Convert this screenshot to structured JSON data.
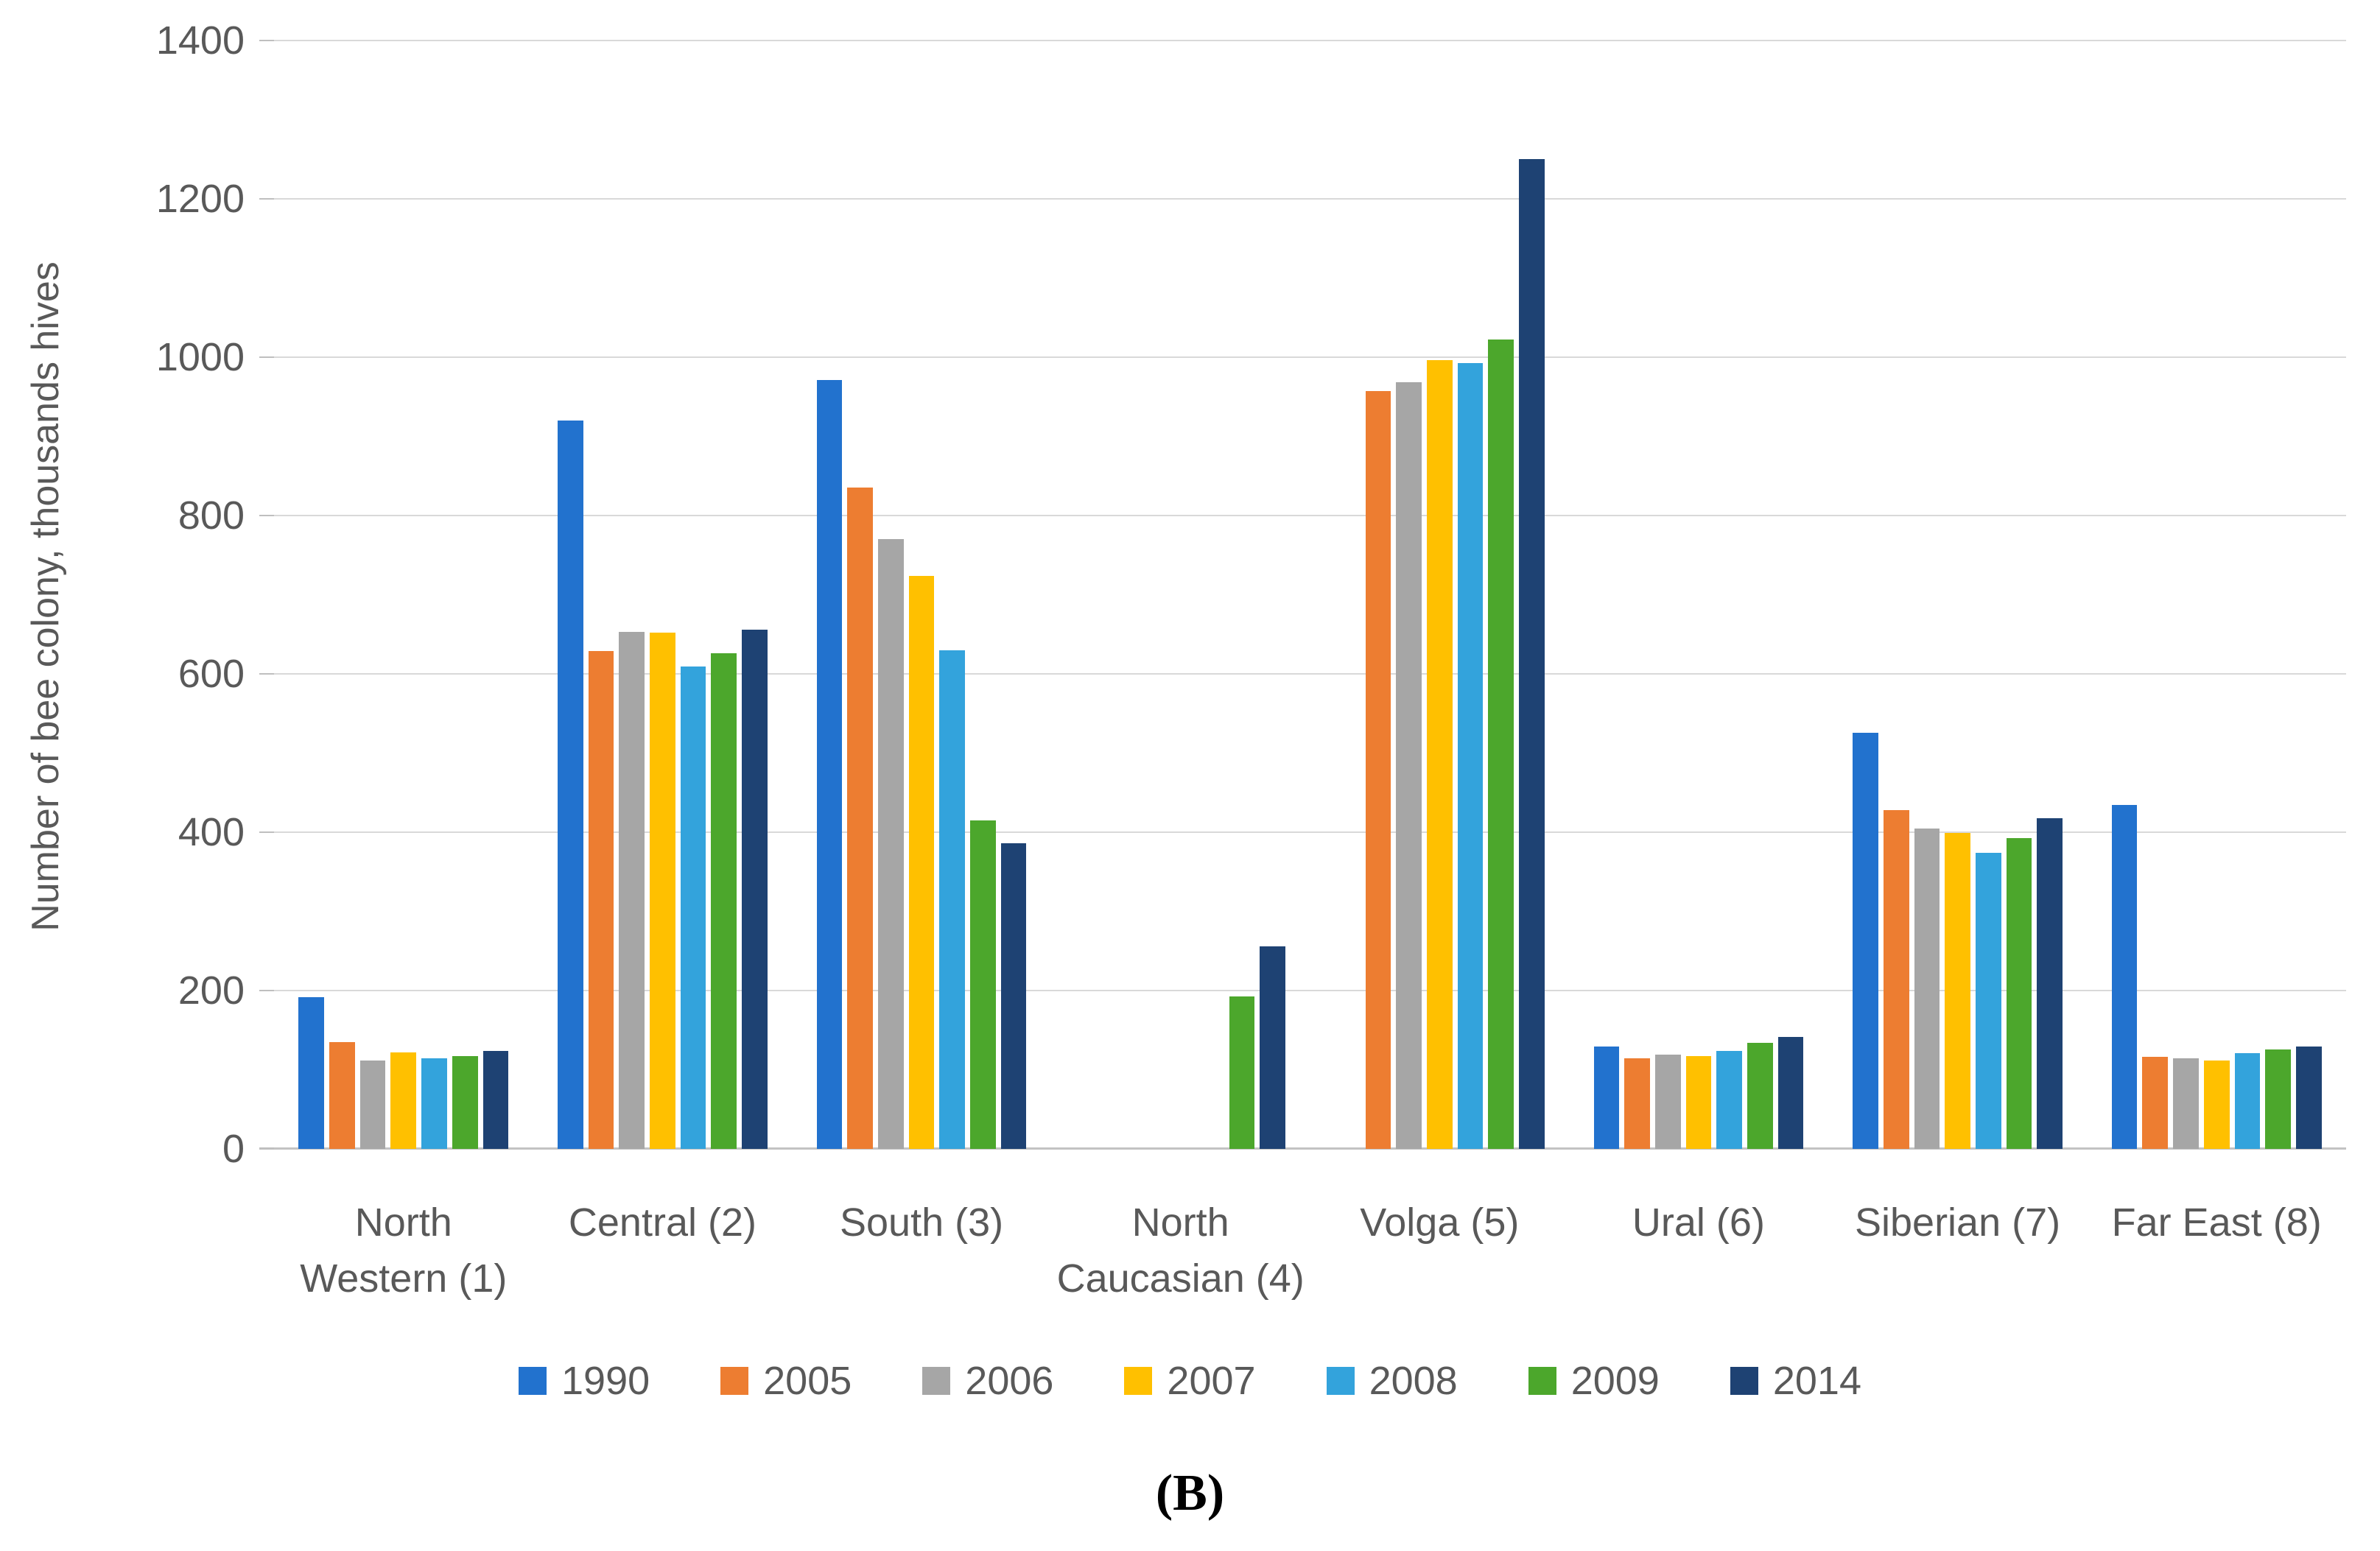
{
  "figure": {
    "caption": "(B)"
  },
  "chart_data": {
    "type": "bar",
    "title": "",
    "ylabel": "Number of bee colony, thousands hives",
    "xlabel": "",
    "ylim": [
      0,
      1400
    ],
    "y_ticks": [
      0,
      200,
      400,
      600,
      800,
      1000,
      1200,
      1400
    ],
    "grid": "horizontal",
    "legend_position": "bottom",
    "categories": [
      "North Western (1)",
      "Central (2)",
      "South (3)",
      "North Caucasian (4)",
      "Volga (5)",
      "Ural (6)",
      "Siberian (7)",
      "Far East (8)"
    ],
    "category_label_lines": [
      [
        "North",
        "Western (1)"
      ],
      [
        "Central (2)"
      ],
      [
        "South (3)"
      ],
      [
        "North",
        "Caucasian (4)"
      ],
      [
        "Volga (5)"
      ],
      [
        "Ural (6)"
      ],
      [
        "Siberian (7)"
      ],
      [
        "Far East (8)"
      ]
    ],
    "series": [
      {
        "name": "1990",
        "color": "#2272ce",
        "values": [
          192,
          920,
          971,
          0,
          0,
          129,
          526,
          434
        ]
      },
      {
        "name": "2005",
        "color": "#ed7d31",
        "values": [
          135,
          629,
          835,
          0,
          957,
          114,
          428,
          116
        ]
      },
      {
        "name": "2006",
        "color": "#a6a6a6",
        "values": [
          112,
          653,
          770,
          0,
          968,
          119,
          405,
          114
        ]
      },
      {
        "name": "2007",
        "color": "#ffc000",
        "values": [
          122,
          652,
          724,
          0,
          996,
          117,
          399,
          112
        ]
      },
      {
        "name": "2008",
        "color": "#33a3dc",
        "values": [
          114,
          609,
          630,
          0,
          993,
          124,
          374,
          121
        ]
      },
      {
        "name": "2009",
        "color": "#4ca72c",
        "values": [
          117,
          626,
          415,
          193,
          1022,
          134,
          393,
          126
        ]
      },
      {
        "name": "2014",
        "color": "#1e4273",
        "values": [
          124,
          656,
          386,
          256,
          1250,
          141,
          418,
          129
        ]
      }
    ],
    "colors": {
      "gridline": "#d9d9d9",
      "axis_line": "#c3c3c3",
      "text": "#595959"
    }
  }
}
